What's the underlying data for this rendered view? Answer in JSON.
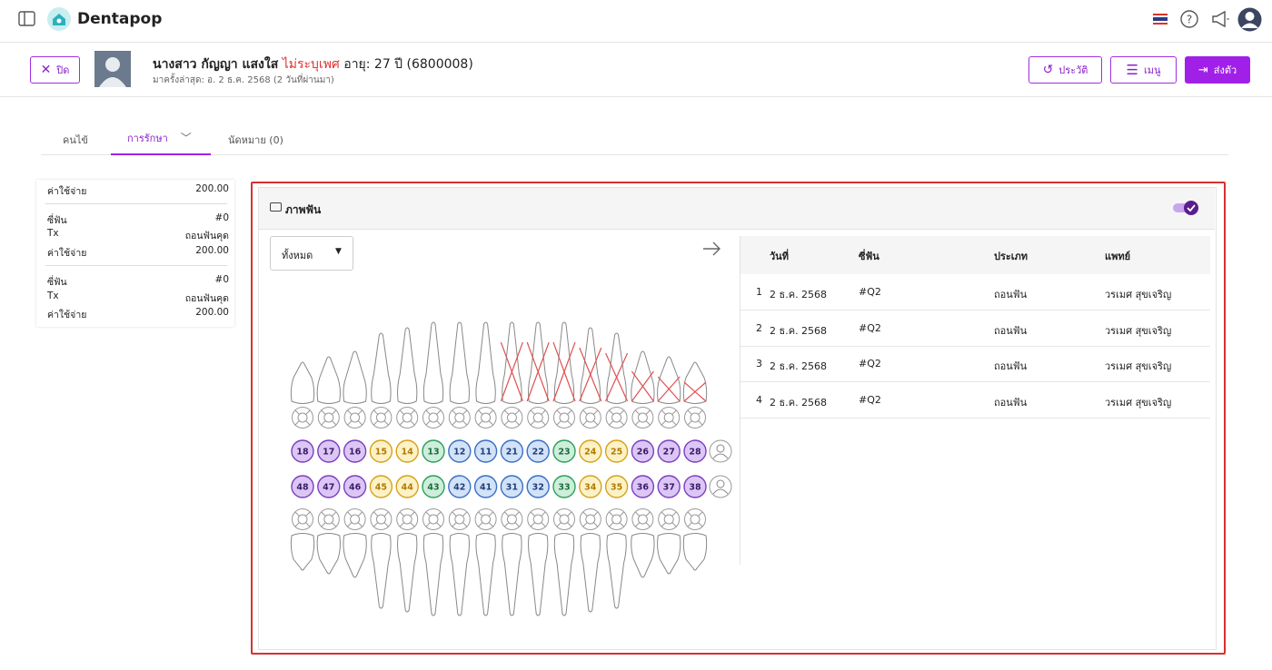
{
  "header": {
    "app_name": "Dentapop"
  },
  "patient_bar": {
    "close": "ปิด",
    "name": "นางสาว กัญญา แสงใส",
    "gender": "ไม่ระบุเพศ",
    "age": "อายุ: 27 ปี",
    "hn": "(6800008)",
    "last_visit": "มาครั้งล่าสุด: อ. 2 ธ.ค. 2568 (2 วันที่ผ่านมา)",
    "history": "ประวัติ",
    "menu": "เมนู",
    "send": "ส่งตัว"
  },
  "tabs": [
    "คนไข้",
    "การรักษา",
    "นัดหมาย (0)"
  ],
  "summary": {
    "total_label": "ค่าใช้จ่าย",
    "total": "200.00",
    "items": [
      {
        "tooth_label": "ซี่ฟัน",
        "tooth": "#0",
        "tx_label": "Tx",
        "tx": "ถอนฟันคุด",
        "cost_label": "ค่าใช้จ่าย",
        "cost": "200.00"
      },
      {
        "tooth_label": "ซี่ฟัน",
        "tooth": "#0",
        "tx_label": "Tx",
        "tx": "ถอนฟันคุด",
        "cost_label": "ค่าใช้จ่าย",
        "cost": "200.00"
      }
    ]
  },
  "panel": {
    "title": "ภาพฟัน",
    "filter": "ทั้งหมด",
    "table": {
      "headers": [
        "วันที่",
        "ซี่ฟัน",
        "ประเภท",
        "แพทย์"
      ],
      "rows": [
        [
          "1",
          "2 ธ.ค. 2568",
          "#Q2",
          "ถอนฟัน",
          "วรเมศ สุขเจริญ"
        ],
        [
          "2",
          "2 ธ.ค. 2568",
          "#Q2",
          "ถอนฟัน",
          "วรเมศ สุขเจริญ"
        ],
        [
          "3",
          "2 ธ.ค. 2568",
          "#Q2",
          "ถอนฟัน",
          "วรเมศ สุขเจริญ"
        ],
        [
          "4",
          "2 ธ.ค. 2568",
          "#Q2",
          "ถอนฟัน",
          "วรเมศ สุขเจริญ"
        ]
      ]
    }
  },
  "tooth_chart": {
    "upper": [
      "18",
      "17",
      "16",
      "15",
      "14",
      "13",
      "12",
      "11",
      "21",
      "22",
      "23",
      "24",
      "25",
      "26",
      "27",
      "28"
    ],
    "lower": [
      "48",
      "47",
      "46",
      "45",
      "44",
      "43",
      "42",
      "41",
      "31",
      "32",
      "33",
      "34",
      "35",
      "36",
      "37",
      "38"
    ]
  }
}
